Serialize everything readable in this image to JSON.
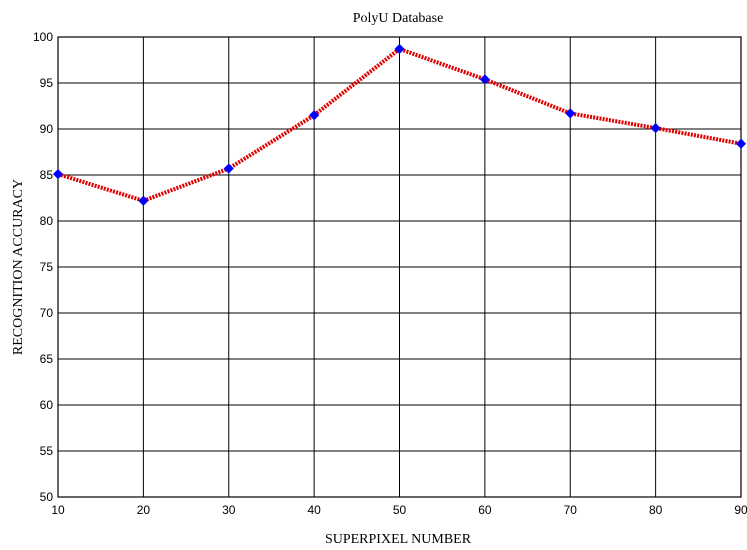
{
  "chart_data": {
    "type": "line",
    "title": "PolyU Database",
    "xlabel": "SUPERPIXEL NUMBER",
    "ylabel": "RECOGNITION ACCURACY",
    "x": [
      10,
      20,
      30,
      40,
      50,
      60,
      70,
      80,
      90
    ],
    "xlim": [
      10,
      90
    ],
    "ylim": [
      50,
      100
    ],
    "xticks": [
      10,
      20,
      30,
      40,
      50,
      60,
      70,
      80,
      90
    ],
    "yticks": [
      50,
      55,
      60,
      65,
      70,
      75,
      80,
      85,
      90,
      95,
      100
    ],
    "grid": true,
    "series": [
      {
        "values": [
          85.1,
          82.2,
          85.7,
          91.5,
          98.7,
          95.4,
          91.7,
          90.1,
          88.4
        ],
        "line_color": "#e00000",
        "marker_color": "#0000ff",
        "line_style": "dotted",
        "marker": "diamond"
      }
    ]
  }
}
